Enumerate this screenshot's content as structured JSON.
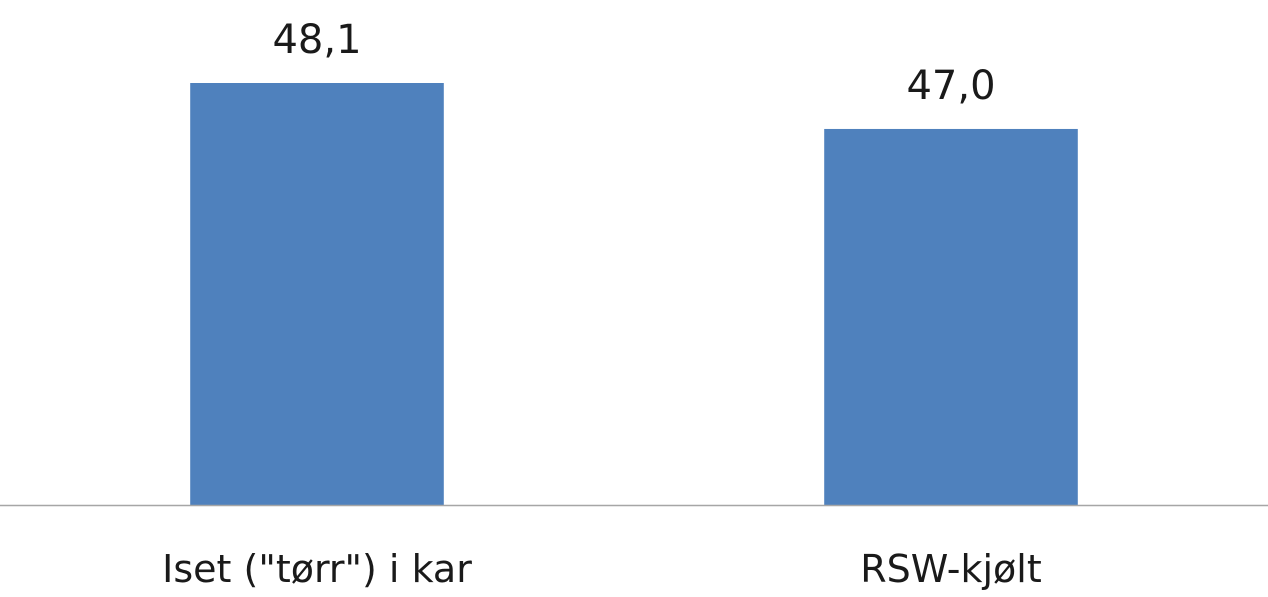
{
  "chart_data": {
    "type": "bar",
    "categories": [
      "Iset (\"tørr\") i kar",
      "RSW-kjølt"
    ],
    "values": [
      48.1,
      47.0
    ],
    "data_labels": [
      "48,1",
      "47,0"
    ],
    "title": "",
    "xlabel": "",
    "ylabel": "",
    "ylim": [
      38,
      49.5
    ],
    "grid": false,
    "legend": "none",
    "colors": {
      "bar": "#4f81bd",
      "axis": "#a6a6a6",
      "text": "#1a1a1a"
    }
  }
}
